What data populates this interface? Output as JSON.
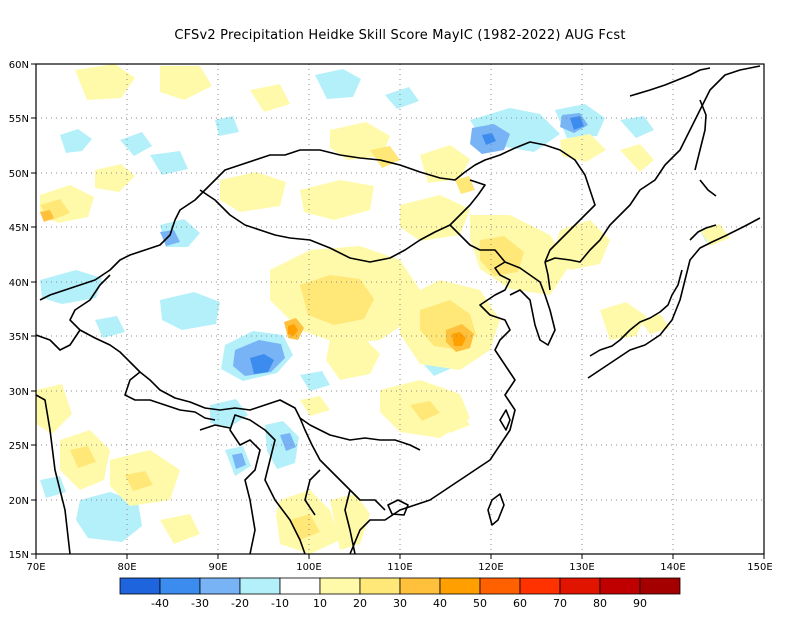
{
  "title": "CFSv2  Precipitation Heidke Skill Score MayIC (1982-2022) AUG Fcst",
  "axes": {
    "lat_labels": [
      "15N",
      "20N",
      "25N",
      "30N",
      "35N",
      "40N",
      "45N",
      "50N",
      "55N",
      "60N"
    ],
    "lon_labels": [
      "70E",
      "80E",
      "90E",
      "100E",
      "110E",
      "120E",
      "130E",
      "140E",
      "150E"
    ]
  },
  "colorbar": {
    "colors": [
      "#1e64dc",
      "#3c8cf0",
      "#78b4f5",
      "#b4f0fa",
      "#ffffff",
      "#fffaaa",
      "#ffe878",
      "#ffc03c",
      "#ffa000",
      "#ff6000",
      "#ff3200",
      "#e11400",
      "#c00000",
      "#a50000"
    ],
    "labels": [
      "-40",
      "-30",
      "-20",
      "-10",
      "10",
      "20",
      "30",
      "40",
      "50",
      "60",
      "70",
      "80",
      "90"
    ]
  },
  "legend": {
    "layer_colors": {
      "neg_weak": "#b4f0fa",
      "neg_mid": "#78b4f5",
      "neg_strong": "#3c8cf0",
      "neg_max": "#1e64dc",
      "pos_weak": "#fffaaa",
      "pos_mid": "#ffe878",
      "pos_strong": "#ffc03c",
      "pos_max": "#ffa000"
    }
  }
}
